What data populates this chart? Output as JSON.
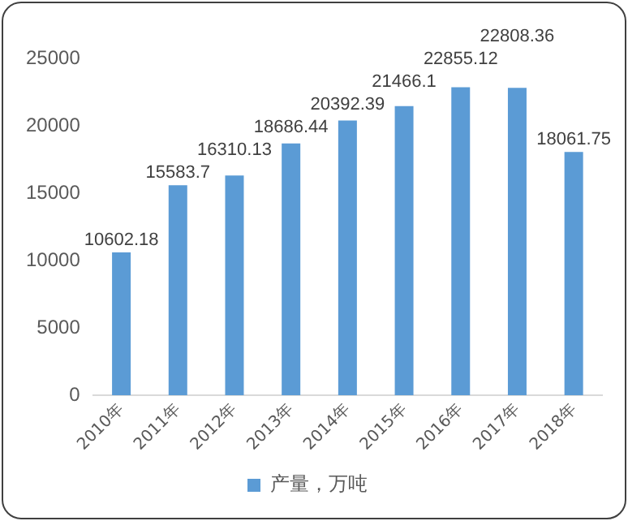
{
  "chart_data": {
    "type": "bar",
    "categories": [
      "2010年",
      "2011年",
      "2012年",
      "2013年",
      "2014年",
      "2015年",
      "2016年",
      "2017年",
      "2018年"
    ],
    "series": [
      {
        "name": "产量，万吨",
        "color": "#5b9bd5",
        "values": [
          10602.18,
          15583.7,
          16310.13,
          18686.44,
          20392.39,
          21466.1,
          22855.12,
          22808.36,
          18061.75
        ]
      }
    ],
    "ylim": [
      0,
      25000
    ],
    "yticks": [
      0,
      5000,
      10000,
      15000,
      20000,
      25000
    ],
    "grid": false,
    "legend": "bottom",
    "data_labels": true
  }
}
